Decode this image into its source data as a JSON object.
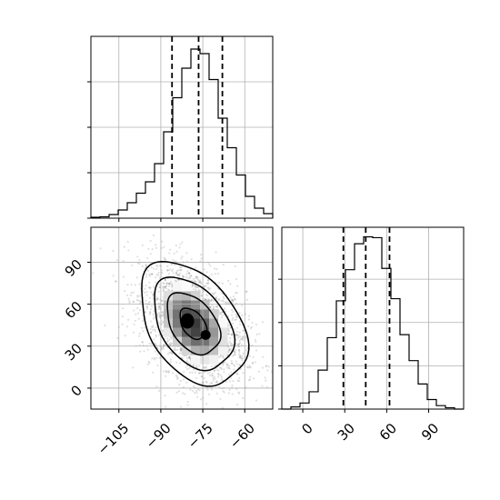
{
  "chart_data": {
    "type": "corner",
    "grid": true,
    "parameters": [
      {
        "range": [
          -115,
          -50
        ],
        "ticks": [
          -105,
          -90,
          -75,
          -60
        ],
        "tick_labels": [
          "−105",
          "−90",
          "−75",
          "−60"
        ]
      },
      {
        "range": [
          -15,
          115
        ],
        "ticks": [
          0,
          30,
          60,
          90
        ],
        "tick_labels": [
          "0",
          "30",
          "60",
          "90"
        ]
      }
    ],
    "histograms": [
      {
        "param": 0,
        "bin_edges": [
          -115,
          -111.75,
          -108.5,
          -105.25,
          -102,
          -98.75,
          -95.5,
          -92.25,
          -89,
          -85.75,
          -82.5,
          -79.25,
          -76,
          -72.75,
          -69.5,
          -66.25,
          -63,
          -59.75,
          -56.5,
          -53.25,
          -50
        ],
        "counts": [
          2,
          3,
          8,
          18,
          34,
          55,
          80,
          120,
          190,
          265,
          330,
          372,
          362,
          305,
          220,
          155,
          95,
          48,
          22,
          10
        ],
        "quantiles": [
          -86,
          -76.5,
          -68
        ],
        "ymax": 400,
        "ytick_values": [
          0,
          100,
          200,
          300
        ]
      },
      {
        "param": 1,
        "bin_edges": [
          -15,
          -8.5,
          -2,
          4.5,
          11,
          17.5,
          24,
          30.5,
          37,
          43.5,
          50,
          56.5,
          63,
          69.5,
          76,
          82.5,
          89,
          95.5,
          102,
          108.5,
          115
        ],
        "counts": [
          0,
          5,
          14,
          40,
          90,
          165,
          250,
          322,
          382,
          398,
          396,
          325,
          255,
          172,
          112,
          58,
          22,
          8,
          3,
          0
        ],
        "quantiles": [
          29,
          45,
          62
        ],
        "ymax": 420,
        "ytick_values": [
          0,
          100,
          200,
          300
        ]
      }
    ],
    "density_2d": {
      "x_param": 0,
      "y_param": 1,
      "center": [
        -78.5,
        46
      ],
      "sigma": [
        9.5,
        22
      ],
      "correlation": -0.4,
      "contour_levels": [
        0.118,
        0.393,
        0.675,
        0.865
      ]
    }
  }
}
